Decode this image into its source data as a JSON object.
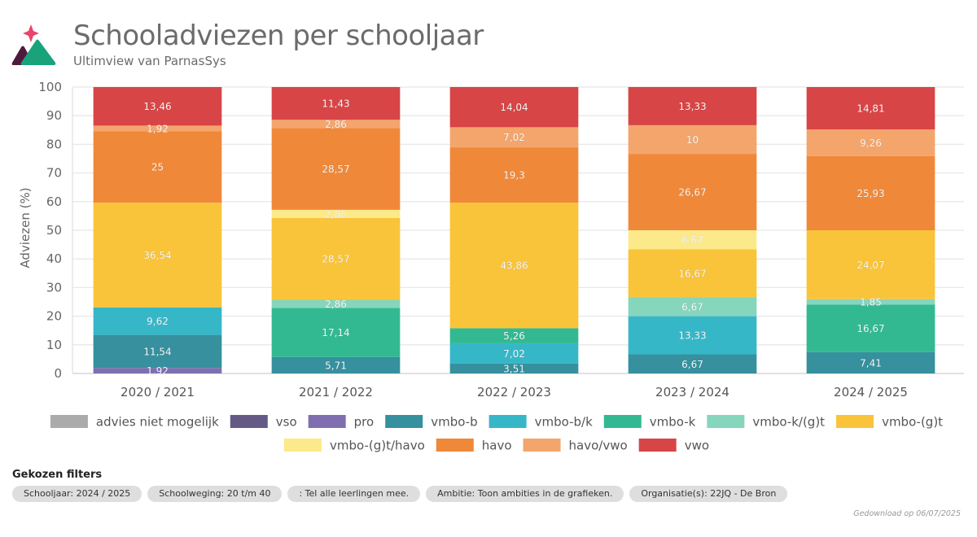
{
  "header": {
    "title": "Schooladviezen per schooljaar",
    "subtitle": "Ultimview van ParnasSys"
  },
  "chart_data": {
    "type": "bar",
    "stacked": true,
    "title": "Schooladviezen per schooljaar",
    "xlabel": "",
    "ylabel": "Adviezen (%)",
    "ylim": [
      0,
      100
    ],
    "yticks": [
      0,
      10,
      20,
      30,
      40,
      50,
      60,
      70,
      80,
      90,
      100
    ],
    "grid": true,
    "legend_position": "bottom",
    "categories": [
      "2020 / 2021",
      "2021 / 2022",
      "2022 / 2023",
      "2023 / 2024",
      "2024 / 2025"
    ],
    "series": [
      {
        "name": "advies niet mogelijk",
        "color": "#ababab",
        "values": [
          0,
          0,
          0,
          0,
          0
        ],
        "labels": [
          "",
          "",
          "",
          "",
          ""
        ]
      },
      {
        "name": "vso",
        "color": "#655a85",
        "values": [
          0,
          0,
          0,
          0,
          0
        ],
        "labels": [
          "",
          "",
          "",
          "",
          ""
        ]
      },
      {
        "name": "pro",
        "color": "#7f6fb0",
        "values": [
          1.92,
          0,
          0,
          0,
          0
        ],
        "labels": [
          "1,92",
          "",
          "",
          "",
          ""
        ]
      },
      {
        "name": "vmbo-b",
        "color": "#36909e",
        "values": [
          11.54,
          5.71,
          3.51,
          6.67,
          7.41
        ],
        "labels": [
          "11,54",
          "5,71",
          "3,51",
          "6,67",
          "7,41"
        ]
      },
      {
        "name": "vmbo-b/k",
        "color": "#36b7c8",
        "values": [
          9.62,
          0,
          7.02,
          13.33,
          0
        ],
        "labels": [
          "9,62",
          "",
          "7,02",
          "13,33",
          ""
        ]
      },
      {
        "name": "vmbo-k",
        "color": "#33b992",
        "values": [
          0,
          17.14,
          5.26,
          0,
          16.67
        ],
        "labels": [
          "",
          "17,14",
          "5,26",
          "",
          "16,67"
        ]
      },
      {
        "name": "vmbo-k/(g)t",
        "color": "#86d5bd",
        "values": [
          0,
          2.86,
          0,
          6.67,
          1.85
        ],
        "labels": [
          "",
          "2,86",
          "",
          "6,67",
          "1,85"
        ]
      },
      {
        "name": "vmbo-(g)t",
        "color": "#f9c43a",
        "values": [
          36.54,
          28.57,
          43.86,
          16.67,
          24.07
        ],
        "labels": [
          "36,54",
          "28,57",
          "43,86",
          "16,67",
          "24,07"
        ]
      },
      {
        "name": "vmbo-(g)t/havo",
        "color": "#fce98a",
        "values": [
          0,
          2.86,
          0,
          6.67,
          0
        ],
        "labels": [
          "",
          "2,86",
          "",
          "6,67",
          ""
        ]
      },
      {
        "name": "havo",
        "color": "#f0883a",
        "values": [
          25,
          28.57,
          19.3,
          26.67,
          25.93
        ],
        "labels": [
          "25",
          "28,57",
          "19,3",
          "26,67",
          "25,93"
        ]
      },
      {
        "name": "havo/vwo",
        "color": "#f3a56c",
        "values": [
          1.92,
          2.86,
          7.02,
          10,
          9.26
        ],
        "labels": [
          "1,92",
          "2,86",
          "7,02",
          "10",
          "9,26"
        ]
      },
      {
        "name": "vwo",
        "color": "#d84546",
        "values": [
          13.46,
          11.43,
          14.04,
          13.33,
          14.81
        ],
        "labels": [
          "13,46",
          "11,43",
          "14,04",
          "13,33",
          "14,81"
        ]
      }
    ]
  },
  "filters": {
    "title": "Gekozen filters",
    "chips": [
      "Schooljaar: 2024 / 2025",
      "Schoolweging: 20 t/m 40",
      ": Tel alle leerlingen mee.",
      "Ambitie: Toon ambities in de grafieken.",
      "Organisatie(s): 22JQ - De Bron"
    ]
  },
  "footer": {
    "download_text": "Gedownload op 06/07/2025"
  },
  "icons": {
    "logo": "parnassys-logo-icon"
  }
}
